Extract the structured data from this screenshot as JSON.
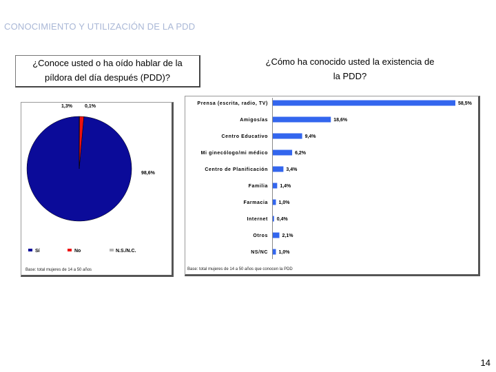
{
  "slide": {
    "title": "CONOCIMIENTO Y UTILIZACIÓN DE LA PDD",
    "page_number": "14"
  },
  "left": {
    "question_line1": "¿Conoce usted o ha oído hablar de la",
    "question_line2": "píldora del día después (PDD)?",
    "base": "Base: total mujeres de 14 a 50 años"
  },
  "right": {
    "question_line1": "¿Cómo ha conocido usted la existencia de",
    "question_line2": "la PDD?",
    "base": "Base: total mujeres de 14 a 50 años que conocen la PDD"
  },
  "colors": {
    "blue": "#0b0b99",
    "red": "#ee1111",
    "gray": "#b3b3b3",
    "bar": "#3366ee"
  },
  "chart_data": [
    {
      "type": "pie",
      "title": "¿Conoce usted o ha oído hablar de la píldora del día después (PDD)?",
      "slices": [
        {
          "name": "Sí",
          "value": 98.6,
          "label": "98,6%",
          "color": "#0b0b99"
        },
        {
          "name": "No",
          "value": 1.3,
          "label": "1,3%",
          "color": "#ee1111"
        },
        {
          "name": "N.S./N.C.",
          "value": 0.1,
          "label": "0,1%",
          "color": "#b3b3b3"
        }
      ],
      "legend": [
        "Sí",
        "No",
        "N.S./N.C."
      ],
      "legend_position": "bottom"
    },
    {
      "type": "bar",
      "orientation": "horizontal",
      "title": "¿Cómo ha conocido usted la existencia de la PDD?",
      "categories": [
        "Prensa (escrita, radio, TV)",
        "Amigos/as",
        "Centro Educativo",
        "Mi ginecólogo/mi médico",
        "Centro de Planificación",
        "Familia",
        "Farmacia",
        "Internet",
        "Otros",
        "NS/NC"
      ],
      "values": [
        58.5,
        18.6,
        9.4,
        6.2,
        3.4,
        1.4,
        1.0,
        0.4,
        2.1,
        1.0
      ],
      "value_labels": [
        "58,5%",
        "18,6%",
        "9,4%",
        "6,2%",
        "3,4%",
        "1,4%",
        "1,0%",
        "0,4%",
        "2,1%",
        "1,0%"
      ],
      "xlim": [
        0,
        58.5
      ]
    }
  ]
}
